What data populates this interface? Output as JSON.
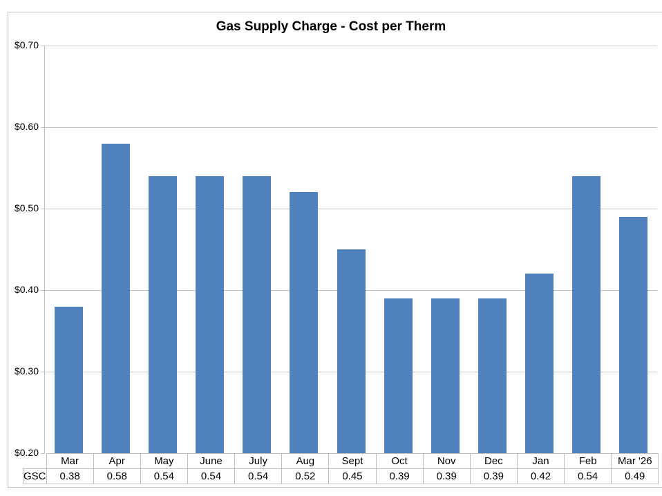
{
  "chart_data": {
    "type": "bar",
    "title": "Gas Supply Charge - Cost per Therm",
    "xlabel": "",
    "ylabel": "",
    "categories": [
      "Mar",
      "Apr",
      "May",
      "June",
      "July",
      "Aug",
      "Sept",
      "Oct",
      "Nov",
      "Dec",
      "Jan",
      "Feb",
      "Mar '26"
    ],
    "series": [
      {
        "name": "GSC",
        "values": [
          0.38,
          0.58,
          0.54,
          0.54,
          0.54,
          0.52,
          0.45,
          0.39,
          0.39,
          0.39,
          0.42,
          0.54,
          0.49
        ],
        "color": "#4f81bd"
      }
    ],
    "ylim": [
      0.2,
      0.7
    ],
    "yticks": [
      "$0.20",
      "$0.30",
      "$0.40",
      "$0.50",
      "$0.60",
      "$0.70"
    ],
    "grid": true,
    "legend": "data table",
    "data_table": {
      "row_label": "GSC",
      "values": [
        "0.38",
        "0.58",
        "0.54",
        "0.54",
        "0.54",
        "0.52",
        "0.45",
        "0.39",
        "0.39",
        "0.39",
        "0.42",
        "0.54",
        "0.49"
      ]
    }
  }
}
